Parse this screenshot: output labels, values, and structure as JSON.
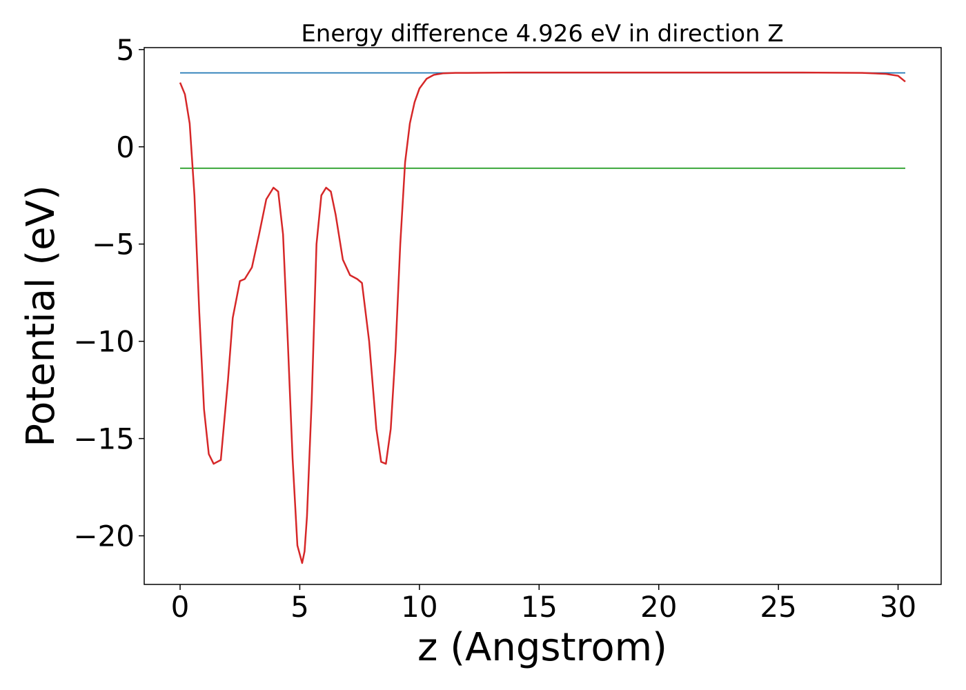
{
  "chart_data": {
    "type": "line",
    "title": "Energy difference 4.926 eV in direction Z",
    "xlabel": "z (Angstrom)",
    "ylabel": "Potential (eV)",
    "xlim": [
      -1.5,
      31.8
    ],
    "ylim": [
      -22.5,
      5.1
    ],
    "xticks": [
      0,
      5,
      10,
      15,
      20,
      25,
      30
    ],
    "yticks": [
      5,
      0,
      -5,
      -10,
      -15,
      -20
    ],
    "xtick_labels": [
      "0",
      "5",
      "10",
      "15",
      "20",
      "25",
      "30"
    ],
    "ytick_labels": [
      "5",
      "0",
      "−5",
      "−10",
      "−15",
      "−20"
    ],
    "grid": false,
    "series": [
      {
        "color": "#1f77b4",
        "x": [
          0,
          30.3
        ],
        "y": [
          3.8,
          3.8
        ]
      },
      {
        "color": "#2ca02c",
        "x": [
          0,
          30.3
        ],
        "y": [
          -1.1,
          -1.1
        ]
      },
      {
        "color": "#d62728",
        "x": [
          0.0,
          0.2,
          0.4,
          0.6,
          0.8,
          1.0,
          1.2,
          1.4,
          1.7,
          2.0,
          2.2,
          2.5,
          2.7,
          3.0,
          3.3,
          3.6,
          3.9,
          4.1,
          4.3,
          4.5,
          4.7,
          4.9,
          5.1,
          5.2,
          5.3,
          5.5,
          5.7,
          5.9,
          6.1,
          6.3,
          6.5,
          6.8,
          7.1,
          7.4,
          7.6,
          7.9,
          8.2,
          8.4,
          8.6,
          8.8,
          9.0,
          9.2,
          9.4,
          9.6,
          9.8,
          10.0,
          10.3,
          10.6,
          11.0,
          11.5,
          12.0,
          14.0,
          20.0,
          26.0,
          28.5,
          29.5,
          30.0,
          30.3
        ],
        "y": [
          3.3,
          2.7,
          1.2,
          -2.5,
          -8.5,
          -13.5,
          -15.8,
          -16.3,
          -16.1,
          -12.0,
          -8.8,
          -6.9,
          -6.8,
          -6.2,
          -4.5,
          -2.7,
          -2.1,
          -2.3,
          -4.5,
          -10.0,
          -16.0,
          -20.5,
          -21.4,
          -20.8,
          -19.0,
          -13.0,
          -5.0,
          -2.5,
          -2.1,
          -2.3,
          -3.5,
          -5.8,
          -6.6,
          -6.8,
          -7.0,
          -10.0,
          -14.5,
          -16.2,
          -16.3,
          -14.5,
          -10.5,
          -5.0,
          -0.8,
          1.2,
          2.3,
          3.0,
          3.5,
          3.7,
          3.78,
          3.8,
          3.8,
          3.82,
          3.82,
          3.82,
          3.8,
          3.75,
          3.65,
          3.35
        ]
      }
    ]
  }
}
